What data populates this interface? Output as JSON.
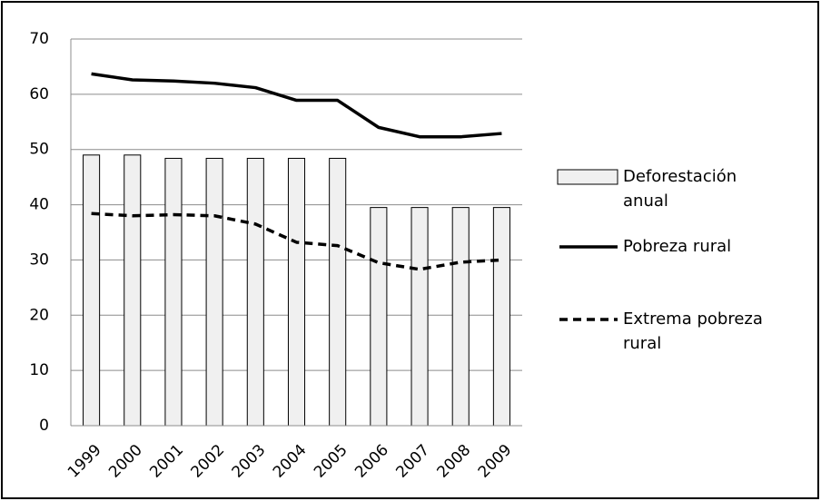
{
  "chart_data": {
    "type": "bar",
    "categories": [
      "1999",
      "2000",
      "2001",
      "2002",
      "2003",
      "2004",
      "2005",
      "2006",
      "2007",
      "2008",
      "2009"
    ],
    "series": [
      {
        "name": "Deforestación anual",
        "type": "bar",
        "color": "#f0f0f0",
        "values": [
          49,
          49,
          48.4,
          48.4,
          48.4,
          48.4,
          48.4,
          39.5,
          39.5,
          39.5,
          39.5
        ]
      },
      {
        "name": "Pobreza rural",
        "type": "line",
        "line_style": "solid",
        "color": "#000000",
        "values": [
          63.7,
          62.6,
          62.4,
          62,
          61.2,
          58.9,
          58.9,
          54,
          52.3,
          52.3,
          52.9
        ]
      },
      {
        "name": "Extrema pobreza rural",
        "type": "line",
        "line_style": "dashed",
        "color": "#000000",
        "values": [
          38.4,
          38,
          38.2,
          38,
          36.5,
          33.2,
          32.6,
          29.5,
          28.3,
          29.6,
          30
        ]
      }
    ],
    "ylim": [
      0,
      70
    ],
    "yticks": [
      0,
      10,
      20,
      30,
      40,
      50,
      60,
      70
    ],
    "grid": true,
    "legend": "right"
  }
}
